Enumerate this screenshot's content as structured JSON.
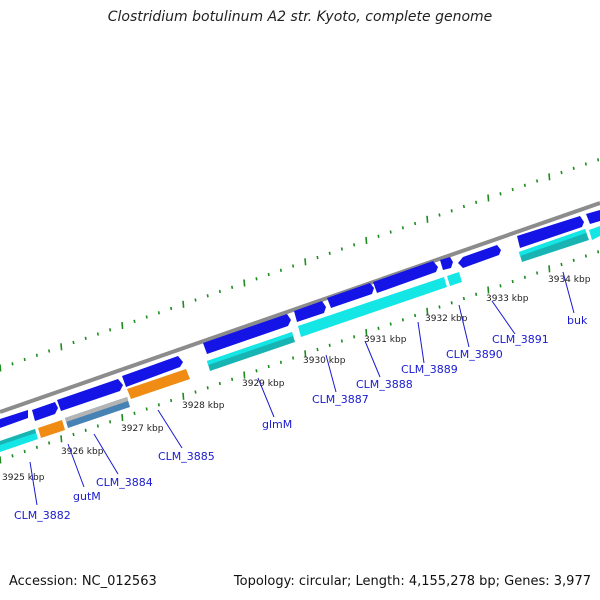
{
  "title": "Clostridium botulinum A2 str. Kyoto, complete genome",
  "accession": "Accession: NC_012563",
  "summary": "Topology: circular; Length: 4,155,278 bp; Genes: 3,977",
  "colors": {
    "backbone": "#8c8c8c",
    "strand_forward": "#1414e6",
    "strand_feature": "#14e6e6",
    "feature_dark_teal": "#18b4b4",
    "feature_orange": "#f08c14",
    "feature_grey": "#b4b4b4",
    "feature_steelblue": "#4682b4",
    "tick_mark": "#1e8c1e",
    "label_blue": "#1a1ad0"
  },
  "scale_ticks": [
    "3925 kbp",
    "3926 kbp",
    "3927 kbp",
    "3928 kbp",
    "3929 kbp",
    "3930 kbp",
    "3931 kbp",
    "3932 kbp",
    "3933 kbp",
    "3934 kbp"
  ],
  "gene_labels": [
    "CLM_3882",
    "gutM",
    "CLM_3884",
    "CLM_3885",
    "glmM",
    "CLM_3887",
    "CLM_3888",
    "CLM_3889",
    "CLM_3890",
    "CLM_3891",
    "buk"
  ]
}
